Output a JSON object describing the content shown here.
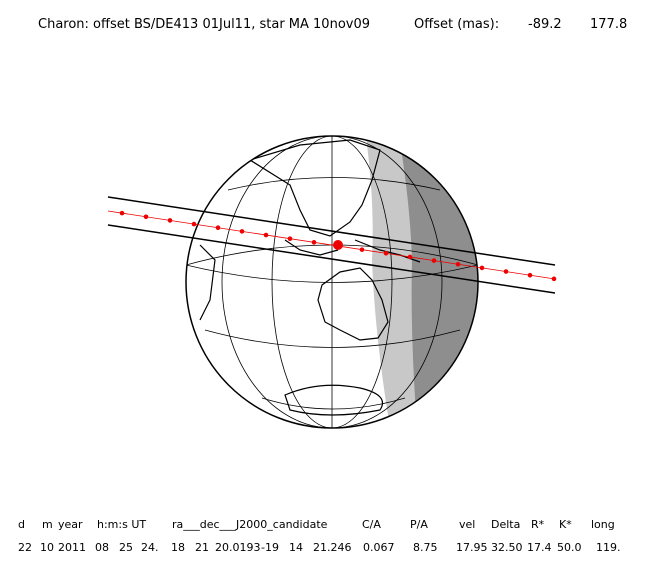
{
  "header": {
    "title": "Charon: offset BS/DE413 01Jul11, star MA 10nov09",
    "offset_label": "Offset (mas):",
    "offset": [
      "-89.2",
      "177.8"
    ]
  },
  "table": {
    "columns": [
      "d",
      "m",
      "year",
      "h:m:s UT",
      "ra___dec___J2000_candidate",
      "C/A",
      "P/A",
      "vel",
      "Delta",
      "R*",
      "K*",
      "long"
    ],
    "row": [
      "22",
      "10",
      "2011",
      "08",
      "25",
      "24.",
      "18",
      "21",
      "20.0193",
      "-19",
      "14",
      "21.246",
      "0.067",
      "8.75",
      "17.95",
      "32.50",
      "17.4",
      "50.0",
      "119."
    ]
  }
}
